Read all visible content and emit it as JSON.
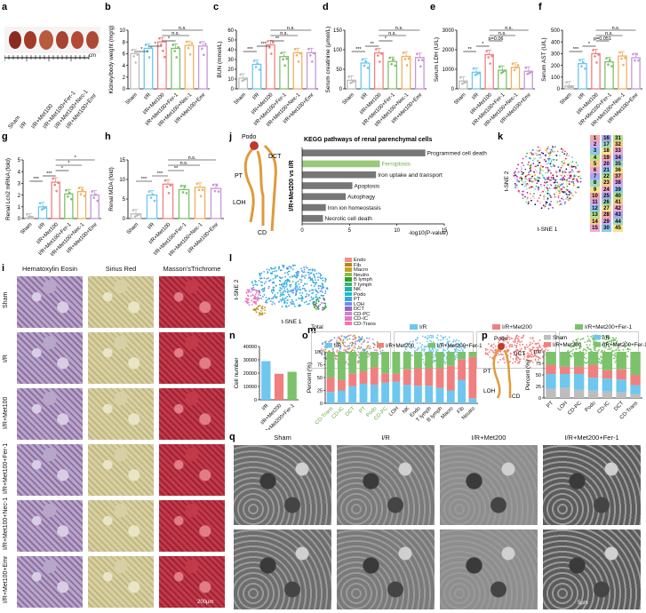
{
  "panel_letters": [
    "a",
    "b",
    "c",
    "d",
    "e",
    "f",
    "g",
    "h",
    "i",
    "j",
    "k",
    "l",
    "m",
    "n",
    "o",
    "p",
    "q"
  ],
  "panel_a": {
    "scale_label": "cm",
    "groups": [
      "Sham",
      "I/R",
      "I/R+Met100",
      "I/R+Met100+Fer-1",
      "I/R+Met100+Nec-1",
      "I/R+Met100+Emr"
    ]
  },
  "bar_groups_6": [
    "Sham",
    "I/R",
    "I/R+Met100",
    "I/R+Met100+Fer-1",
    "I/R+Met100+Nec-1",
    "I/R+Met100+Emr"
  ],
  "bar_colors_6": [
    "#bdbdbd",
    "#6ec7ef",
    "#f08080",
    "#7cc26b",
    "#f0b060",
    "#c597d6"
  ],
  "chart_data": [
    {
      "id": "b",
      "type": "bar",
      "ylabel": "Kidney/body weight (mg/g)",
      "ylim": [
        0,
        10
      ],
      "yticks": [
        0,
        2,
        4,
        6,
        8,
        10
      ],
      "categories": [
        "Sham",
        "I/R",
        "I/R+Met100",
        "I/R+Met100+Fer-1",
        "I/R+Met100+Nec-1",
        "I/R+Met100+Emr"
      ],
      "values": [
        6.0,
        6.9,
        8.0,
        6.9,
        7.4,
        7.3
      ],
      "sig": [
        "*",
        "*",
        "*",
        "n.s.",
        "n.s."
      ]
    },
    {
      "id": "c",
      "type": "bar",
      "ylabel": "BUN (mmol/L)",
      "ylim": [
        0,
        60
      ],
      "yticks": [
        0,
        10,
        20,
        30,
        40,
        50,
        60
      ],
      "categories": [
        "Sham",
        "I/R",
        "I/R+Met100",
        "I/R+Met100+Fer-1",
        "I/R+Met100+Nec-1",
        "I/R+Met100+Emr"
      ],
      "values": [
        11,
        25,
        45,
        33,
        37,
        37
      ],
      "sig": [
        "***",
        "***",
        "**",
        "n.s.",
        "n.s."
      ]
    },
    {
      "id": "d",
      "type": "bar",
      "ylabel": "Serum creatinine (µmol/L)",
      "ylim": [
        0,
        150
      ],
      "yticks": [
        0,
        50,
        100,
        150
      ],
      "categories": [
        "Sham",
        "I/R",
        "I/R+Met100",
        "I/R+Met100+Fer-1",
        "I/R+Met100+Nec-1",
        "I/R+Met100+Emr"
      ],
      "values": [
        22,
        66,
        92,
        70,
        83,
        80
      ],
      "sig": [
        "***",
        "**",
        "*",
        "n.s.",
        "n.s."
      ]
    },
    {
      "id": "e",
      "type": "bar",
      "ylabel": "Serum LDH (U/L)",
      "ylim": [
        0,
        3000
      ],
      "yticks": [
        0,
        1000,
        2000,
        3000
      ],
      "categories": [
        "Sham",
        "I/R",
        "I/R+Met100",
        "I/R+Met100+Fer-1",
        "I/R+Met100+Nec-1",
        "I/R+Met100+Emr"
      ],
      "values": [
        400,
        850,
        1750,
        950,
        1100,
        900
      ],
      "sig": [
        "**",
        "*",
        "p=0.06",
        "n.s.",
        "n.s."
      ]
    },
    {
      "id": "f",
      "type": "bar",
      "ylabel": "Serum AST (U/L)",
      "ylim": [
        0,
        500
      ],
      "yticks": [
        0,
        100,
        200,
        300,
        400,
        500
      ],
      "categories": [
        "Sham",
        "I/R",
        "I/R+Met100",
        "I/R+Met100+Fer-1",
        "I/R+Met100+Nec-1",
        "I/R+Met100+Emr"
      ],
      "values": [
        25,
        215,
        300,
        230,
        280,
        265
      ],
      "sig": [
        "***",
        "*",
        "p=0.051",
        "n.s.",
        "n.s."
      ]
    },
    {
      "id": "g",
      "type": "bar",
      "ylabel": "Renal Lcn2 mRNA (fold)",
      "ylim": [
        0,
        5
      ],
      "yticks": [
        0,
        1,
        2,
        3,
        4,
        5
      ],
      "categories": [
        "Sham",
        "I/R",
        "I/R+Met100",
        "I/R+Met100+Fer-1",
        "I/R+Met100+Nec-1",
        "I/R+Met100+Emr"
      ],
      "values": [
        0.05,
        1.0,
        3.1,
        2.1,
        2.3,
        2.0
      ],
      "sig": [
        "***",
        "***",
        "*",
        "*",
        "*"
      ]
    },
    {
      "id": "h",
      "type": "bar",
      "ylabel": "Renal MDA (fold)",
      "ylim": [
        0,
        15
      ],
      "yticks": [
        0,
        5,
        10,
        15
      ],
      "categories": [
        "Sham",
        "I/R",
        "I/R+Met100",
        "I/R+Met100+Fer-1",
        "I/R+Met100+Nec-1",
        "I/R+Met100+Emr"
      ],
      "values": [
        1.2,
        6.0,
        8.8,
        7.4,
        8.0,
        7.7
      ],
      "sig": [
        "***",
        "***",
        "**",
        "n.s.",
        "n.s."
      ]
    },
    {
      "id": "j",
      "type": "hbar",
      "title": "KEGG pathways of renal parenchymal cells",
      "xlabel": "-log10(P-value)",
      "xlim": [
        0,
        15
      ],
      "xticks": [
        0,
        5,
        10,
        15
      ],
      "categories": [
        "Programmed cell death",
        "Ferroptosis",
        "Iron uptake and transport",
        "Apoptosis",
        "Autophagy",
        "Iron ion homeostasis",
        "Necrotic cell death"
      ],
      "values": [
        13.0,
        8.2,
        7.8,
        5.3,
        4.6,
        2.5,
        2.2
      ],
      "highlight": "Ferroptosis",
      "side_label": "I/R+Met200 vs I/R"
    },
    {
      "id": "n",
      "type": "bar",
      "ylabel": "Cell number",
      "ylim": [
        0,
        40000
      ],
      "yticks": [
        0,
        10000,
        20000,
        30000,
        40000
      ],
      "categories": [
        "I/R",
        "I/R+Met200",
        "I/R+Met200+Fer-1"
      ],
      "values": [
        29000,
        19500,
        21000
      ],
      "colors": [
        "#6ec7ef",
        "#f08080",
        "#7cc26b"
      ]
    },
    {
      "id": "o",
      "type": "stacked_bar",
      "ylabel": "Percent (%)",
      "ylim": [
        0,
        100
      ],
      "legend": [
        "I/R",
        "I/R+Met200",
        "I/R+Met200+Fer-1"
      ],
      "colors": [
        "#6ec7ef",
        "#f08080",
        "#7cc26b"
      ],
      "categories": [
        "CD-Trans",
        "CD-IC",
        "DCT",
        "PT",
        "Podo",
        "CD-PC",
        "LOH",
        "NK",
        "Endo",
        "T lymph",
        "B lymph",
        "Macro",
        "Fib",
        "Neutro"
      ],
      "series": [
        {
          "name": "I/R",
          "values": [
            22,
            25,
            33,
            38,
            36,
            40,
            42,
            36,
            34,
            34,
            30,
            25,
            45,
            10
          ]
        },
        {
          "name": "I/R+Met200",
          "values": [
            28,
            20,
            25,
            24,
            34,
            18,
            16,
            30,
            34,
            34,
            38,
            48,
            40,
            80
          ]
        },
        {
          "name": "I/R+Met200+Fer-1",
          "values": [
            50,
            55,
            42,
            38,
            30,
            42,
            42,
            34,
            32,
            32,
            32,
            27,
            15,
            10
          ]
        }
      ]
    },
    {
      "id": "p",
      "type": "stacked_bar",
      "ylabel": "Percent (%)",
      "ylim": [
        0,
        100
      ],
      "legend": [
        "Sham",
        "I/R",
        "I/R+Met200",
        "I/R+Met200+Fer-1"
      ],
      "colors": [
        "#bdbdbd",
        "#6ec7ef",
        "#f08080",
        "#7cc26b"
      ],
      "categories": [
        "PT",
        "LOH",
        "CD-PC",
        "Podo",
        "CD-IC",
        "DCT",
        "CD-Trans"
      ],
      "series": [
        {
          "name": "Sham",
          "values": [
            20,
            22,
            18,
            16,
            14,
            12,
            8
          ]
        },
        {
          "name": "I/R",
          "values": [
            32,
            30,
            34,
            28,
            28,
            28,
            20
          ]
        },
        {
          "name": "I/R+Met200",
          "values": [
            20,
            16,
            16,
            28,
            18,
            22,
            22
          ]
        },
        {
          "name": "I/R+Met200+Fer-1",
          "values": [
            28,
            32,
            32,
            28,
            40,
            38,
            50
          ]
        }
      ]
    }
  ],
  "panel_i": {
    "columns": [
      "Hematoxylin Eosin",
      "Sirius Red",
      "Masson'sTrichrome"
    ],
    "rows": [
      "Sham",
      "I/R",
      "I/R+Met100",
      "I/R+Met100+Fer-1",
      "I/R+Met100+Nec-1",
      "I/R+Met100+Emr"
    ],
    "scale": "200µm"
  },
  "panel_j": {
    "labels": [
      "Podo",
      "DCT",
      "PT",
      "LOH",
      "CD"
    ]
  },
  "panel_k": {
    "xlabel": "t-SNE 1",
    "ylabel": "t-SNE 2",
    "clusters": [
      "1",
      "2",
      "3",
      "4",
      "5",
      "6",
      "7",
      "8",
      "9",
      "10",
      "11",
      "12",
      "13",
      "14",
      "15",
      "16",
      "17",
      "18",
      "19",
      "20",
      "21",
      "22",
      "23",
      "24",
      "25",
      "26",
      "27",
      "28",
      "29",
      "30",
      "31",
      "32",
      "33",
      "34",
      "35",
      "36",
      "37",
      "38",
      "39",
      "40",
      "41",
      "42",
      "43",
      "44",
      "45"
    ]
  },
  "panel_l": {
    "xlabel": "t-SNE 1",
    "ylabel": "t-SNE 2",
    "legend": [
      "Endo",
      "Fib",
      "Macro",
      "Neutro",
      "B lymph",
      "T lymph",
      "NK",
      "Podo",
      "PT",
      "LOH",
      "DCT",
      "CD-PC",
      "CD-IC",
      "CD-Trans"
    ],
    "colors": [
      "#f28e8e",
      "#b8860b",
      "#c8a02a",
      "#8fbc3f",
      "#2ca02c",
      "#3cb371",
      "#20b2aa",
      "#17becf",
      "#3aa7e0",
      "#6a8cff",
      "#9467bd",
      "#d47fd4",
      "#e377c2",
      "#ff6fa5"
    ]
  },
  "panel_m": {
    "titles": [
      "Total",
      "I/R",
      "I/R+Met200",
      "I/R+Met200+Fer-1"
    ]
  },
  "panel_p_labels": [
    "Podo",
    "DCT",
    "PT",
    "LOH",
    "CD"
  ],
  "panel_q": {
    "columns": [
      "Sham",
      "I/R",
      "I/R+Met200",
      "I/R+Met200+Fer-1"
    ],
    "scale": "5µm"
  }
}
